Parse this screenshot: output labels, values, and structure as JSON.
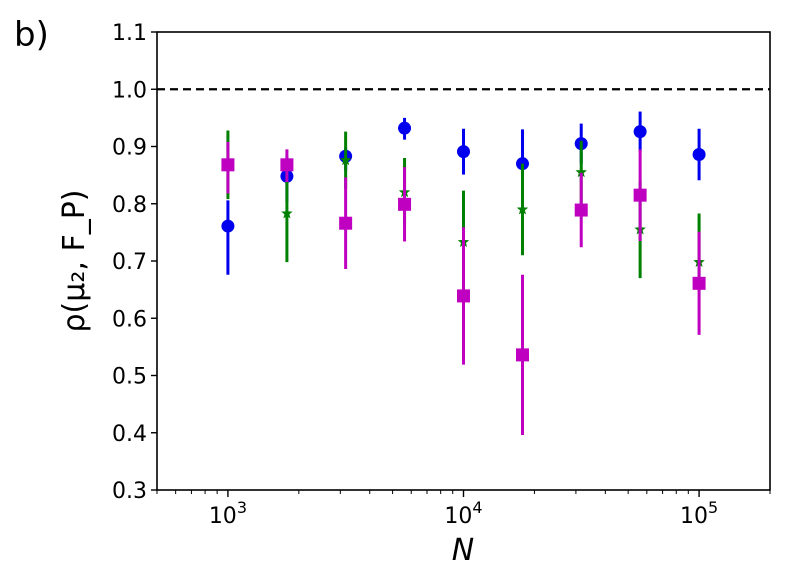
{
  "chart_data": {
    "type": "scatter",
    "panel_label": "b)",
    "xlabel": "N",
    "ylabel": "ρ(μ₂, F_P)",
    "x_scale": "log",
    "xlim": [
      500,
      200000
    ],
    "ylim": [
      0.3,
      1.1
    ],
    "x_ticks": [
      {
        "value": 1000,
        "base": "10",
        "exp": "3"
      },
      {
        "value": 10000,
        "base": "10",
        "exp": "4"
      },
      {
        "value": 100000,
        "base": "10",
        "exp": "5"
      }
    ],
    "y_ticks": [
      "0.3",
      "0.4",
      "0.5",
      "0.6",
      "0.7",
      "0.8",
      "0.9",
      "1.0",
      "1.1"
    ],
    "reference_line": {
      "y": 1.0,
      "style": "dashed",
      "color": "#000000"
    },
    "grid": false,
    "series": [
      {
        "marker": "circle",
        "color": "#0000ee",
        "x": [
          1000,
          1780,
          3160,
          5620,
          10000,
          17800,
          31600,
          56200,
          100000
        ],
        "y": [
          0.761,
          0.848,
          0.883,
          0.932,
          0.891,
          0.87,
          0.905,
          0.926,
          0.886
        ],
        "err_low": [
          0.085,
          0.045,
          0.025,
          0.02,
          0.04,
          0.06,
          0.035,
          0.035,
          0.045
        ],
        "err_high": [
          0.045,
          0.035,
          0.015,
          0.018,
          0.04,
          0.06,
          0.035,
          0.035,
          0.045
        ]
      },
      {
        "marker": "star",
        "color": "#008000",
        "x": [
          1000,
          1780,
          3160,
          5620,
          10000,
          17800,
          31600,
          56200,
          100000
        ],
        "y": [
          0.868,
          0.783,
          0.876,
          0.82,
          0.733,
          0.79,
          0.855,
          0.755,
          0.698
        ],
        "err_low": [
          0.06,
          0.085,
          0.05,
          0.06,
          0.09,
          0.08,
          0.055,
          0.085,
          0.05
        ],
        "err_high": [
          0.06,
          0.08,
          0.05,
          0.06,
          0.09,
          0.08,
          0.055,
          0.085,
          0.085
        ]
      },
      {
        "marker": "square",
        "color": "#c000c0",
        "x": [
          1000,
          1780,
          3160,
          5620,
          10000,
          17800,
          31600,
          56200,
          100000
        ],
        "y": [
          0.868,
          0.868,
          0.766,
          0.799,
          0.639,
          0.536,
          0.789,
          0.815,
          0.661
        ],
        "err_low": [
          0.05,
          0.03,
          0.08,
          0.065,
          0.12,
          0.14,
          0.065,
          0.08,
          0.09
        ],
        "err_high": [
          0.04,
          0.027,
          0.08,
          0.065,
          0.12,
          0.14,
          0.065,
          0.08,
          0.09
        ]
      }
    ]
  }
}
